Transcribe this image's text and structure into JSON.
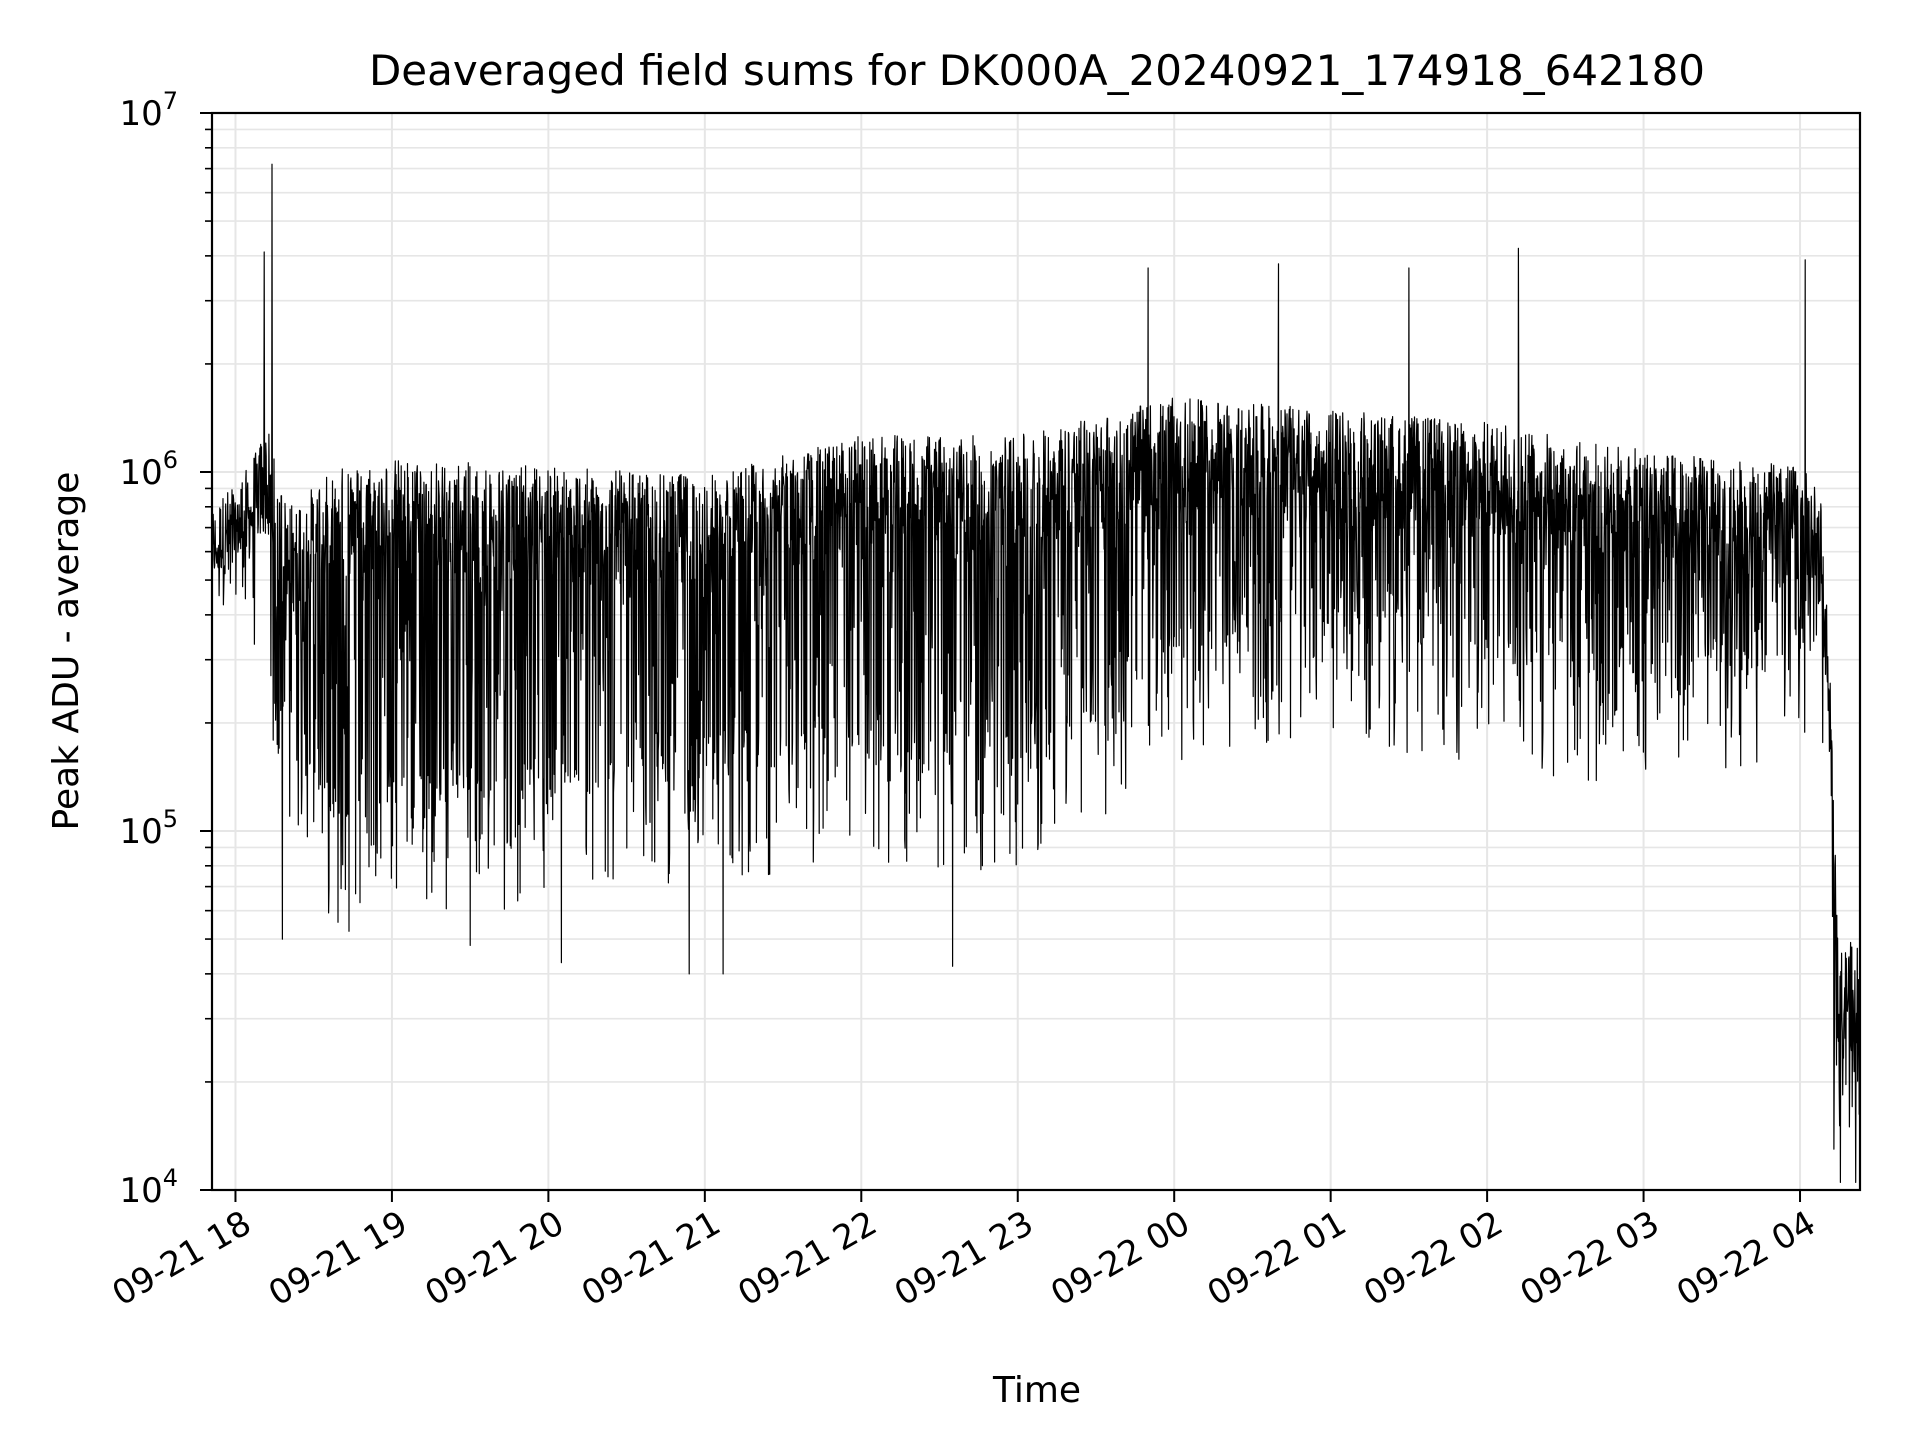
{
  "chart_data": {
    "type": "line",
    "title": "Deaveraged field sums for DK000A_20240921_174918_642180",
    "xlabel": "Time",
    "ylabel": "Peak ADU - average",
    "yscale": "log",
    "ylim": [
      10000,
      10000000
    ],
    "xlim": [
      "2024-09-21 17:51",
      "2024-09-22 04:23"
    ],
    "grid": true,
    "line_color": "#000000",
    "x_ticks": [
      {
        "time": "2024-09-21 18:00",
        "label": "09-21 18"
      },
      {
        "time": "2024-09-21 19:00",
        "label": "09-21 19"
      },
      {
        "time": "2024-09-21 20:00",
        "label": "09-21 20"
      },
      {
        "time": "2024-09-21 21:00",
        "label": "09-21 21"
      },
      {
        "time": "2024-09-21 22:00",
        "label": "09-21 22"
      },
      {
        "time": "2024-09-21 23:00",
        "label": "09-21 23"
      },
      {
        "time": "2024-09-22 00:00",
        "label": "09-22 00"
      },
      {
        "time": "2024-09-22 01:00",
        "label": "09-22 01"
      },
      {
        "time": "2024-09-22 02:00",
        "label": "09-22 02"
      },
      {
        "time": "2024-09-22 03:00",
        "label": "09-22 03"
      },
      {
        "time": "2024-09-22 04:00",
        "label": "09-22 04"
      }
    ],
    "y_ticks": [
      {
        "value": 10000,
        "base": "10",
        "exp": "4"
      },
      {
        "value": 100000,
        "base": "10",
        "exp": "5"
      },
      {
        "value": 1000000,
        "base": "10",
        "exp": "6"
      },
      {
        "value": 10000000,
        "base": "10",
        "exp": "7"
      }
    ],
    "series": [
      {
        "profile_time": [
          "2024-09-21 17:51",
          "2024-09-21 18:05",
          "2024-09-21 18:12",
          "2024-09-21 18:14",
          "2024-09-21 18:20",
          "2024-09-21 18:40",
          "2024-09-21 19:00",
          "2024-09-21 20:00",
          "2024-09-21 21:00",
          "2024-09-21 22:00",
          "2024-09-21 23:00",
          "2024-09-22 00:00",
          "2024-09-22 01:00",
          "2024-09-22 02:00",
          "2024-09-22 03:00",
          "2024-09-22 04:00",
          "2024-09-22 04:08",
          "2024-09-22 04:12",
          "2024-09-22 04:15",
          "2024-09-22 04:23"
        ],
        "typical_peak": [
          700000,
          900000,
          1200000,
          1000000,
          700000,
          900000,
          950000,
          900000,
          850000,
          1100000,
          1100000,
          1400000,
          1300000,
          1200000,
          1000000,
          900000,
          800000,
          200000,
          40000,
          45000
        ],
        "typical_low": [
          500000,
          600000,
          700000,
          200000,
          200000,
          100000,
          120000,
          120000,
          150000,
          150000,
          150000,
          300000,
          350000,
          300000,
          250000,
          300000,
          400000,
          150000,
          15000,
          20000
        ],
        "spike_high": [
          {
            "time": "2024-09-21 18:14",
            "value": 7200000
          },
          {
            "time": "2024-09-21 18:11",
            "value": 4100000
          },
          {
            "time": "2024-09-22 02:12",
            "value": 4200000
          },
          {
            "time": "2024-09-22 04:02",
            "value": 3900000
          },
          {
            "time": "2024-09-21 23:50",
            "value": 3700000
          },
          {
            "time": "2024-09-22 00:40",
            "value": 3800000
          },
          {
            "time": "2024-09-22 01:30",
            "value": 3700000
          }
        ],
        "spike_low": [
          {
            "time": "2024-09-21 18:18",
            "value": 50000
          },
          {
            "time": "2024-09-21 19:30",
            "value": 48000
          },
          {
            "time": "2024-09-21 20:05",
            "value": 43000
          },
          {
            "time": "2024-09-21 20:54",
            "value": 40000
          },
          {
            "time": "2024-09-21 21:07",
            "value": 40000
          },
          {
            "time": "2024-09-21 22:35",
            "value": 42000
          },
          {
            "time": "2024-09-22 04:13",
            "value": 13000
          }
        ]
      }
    ]
  }
}
